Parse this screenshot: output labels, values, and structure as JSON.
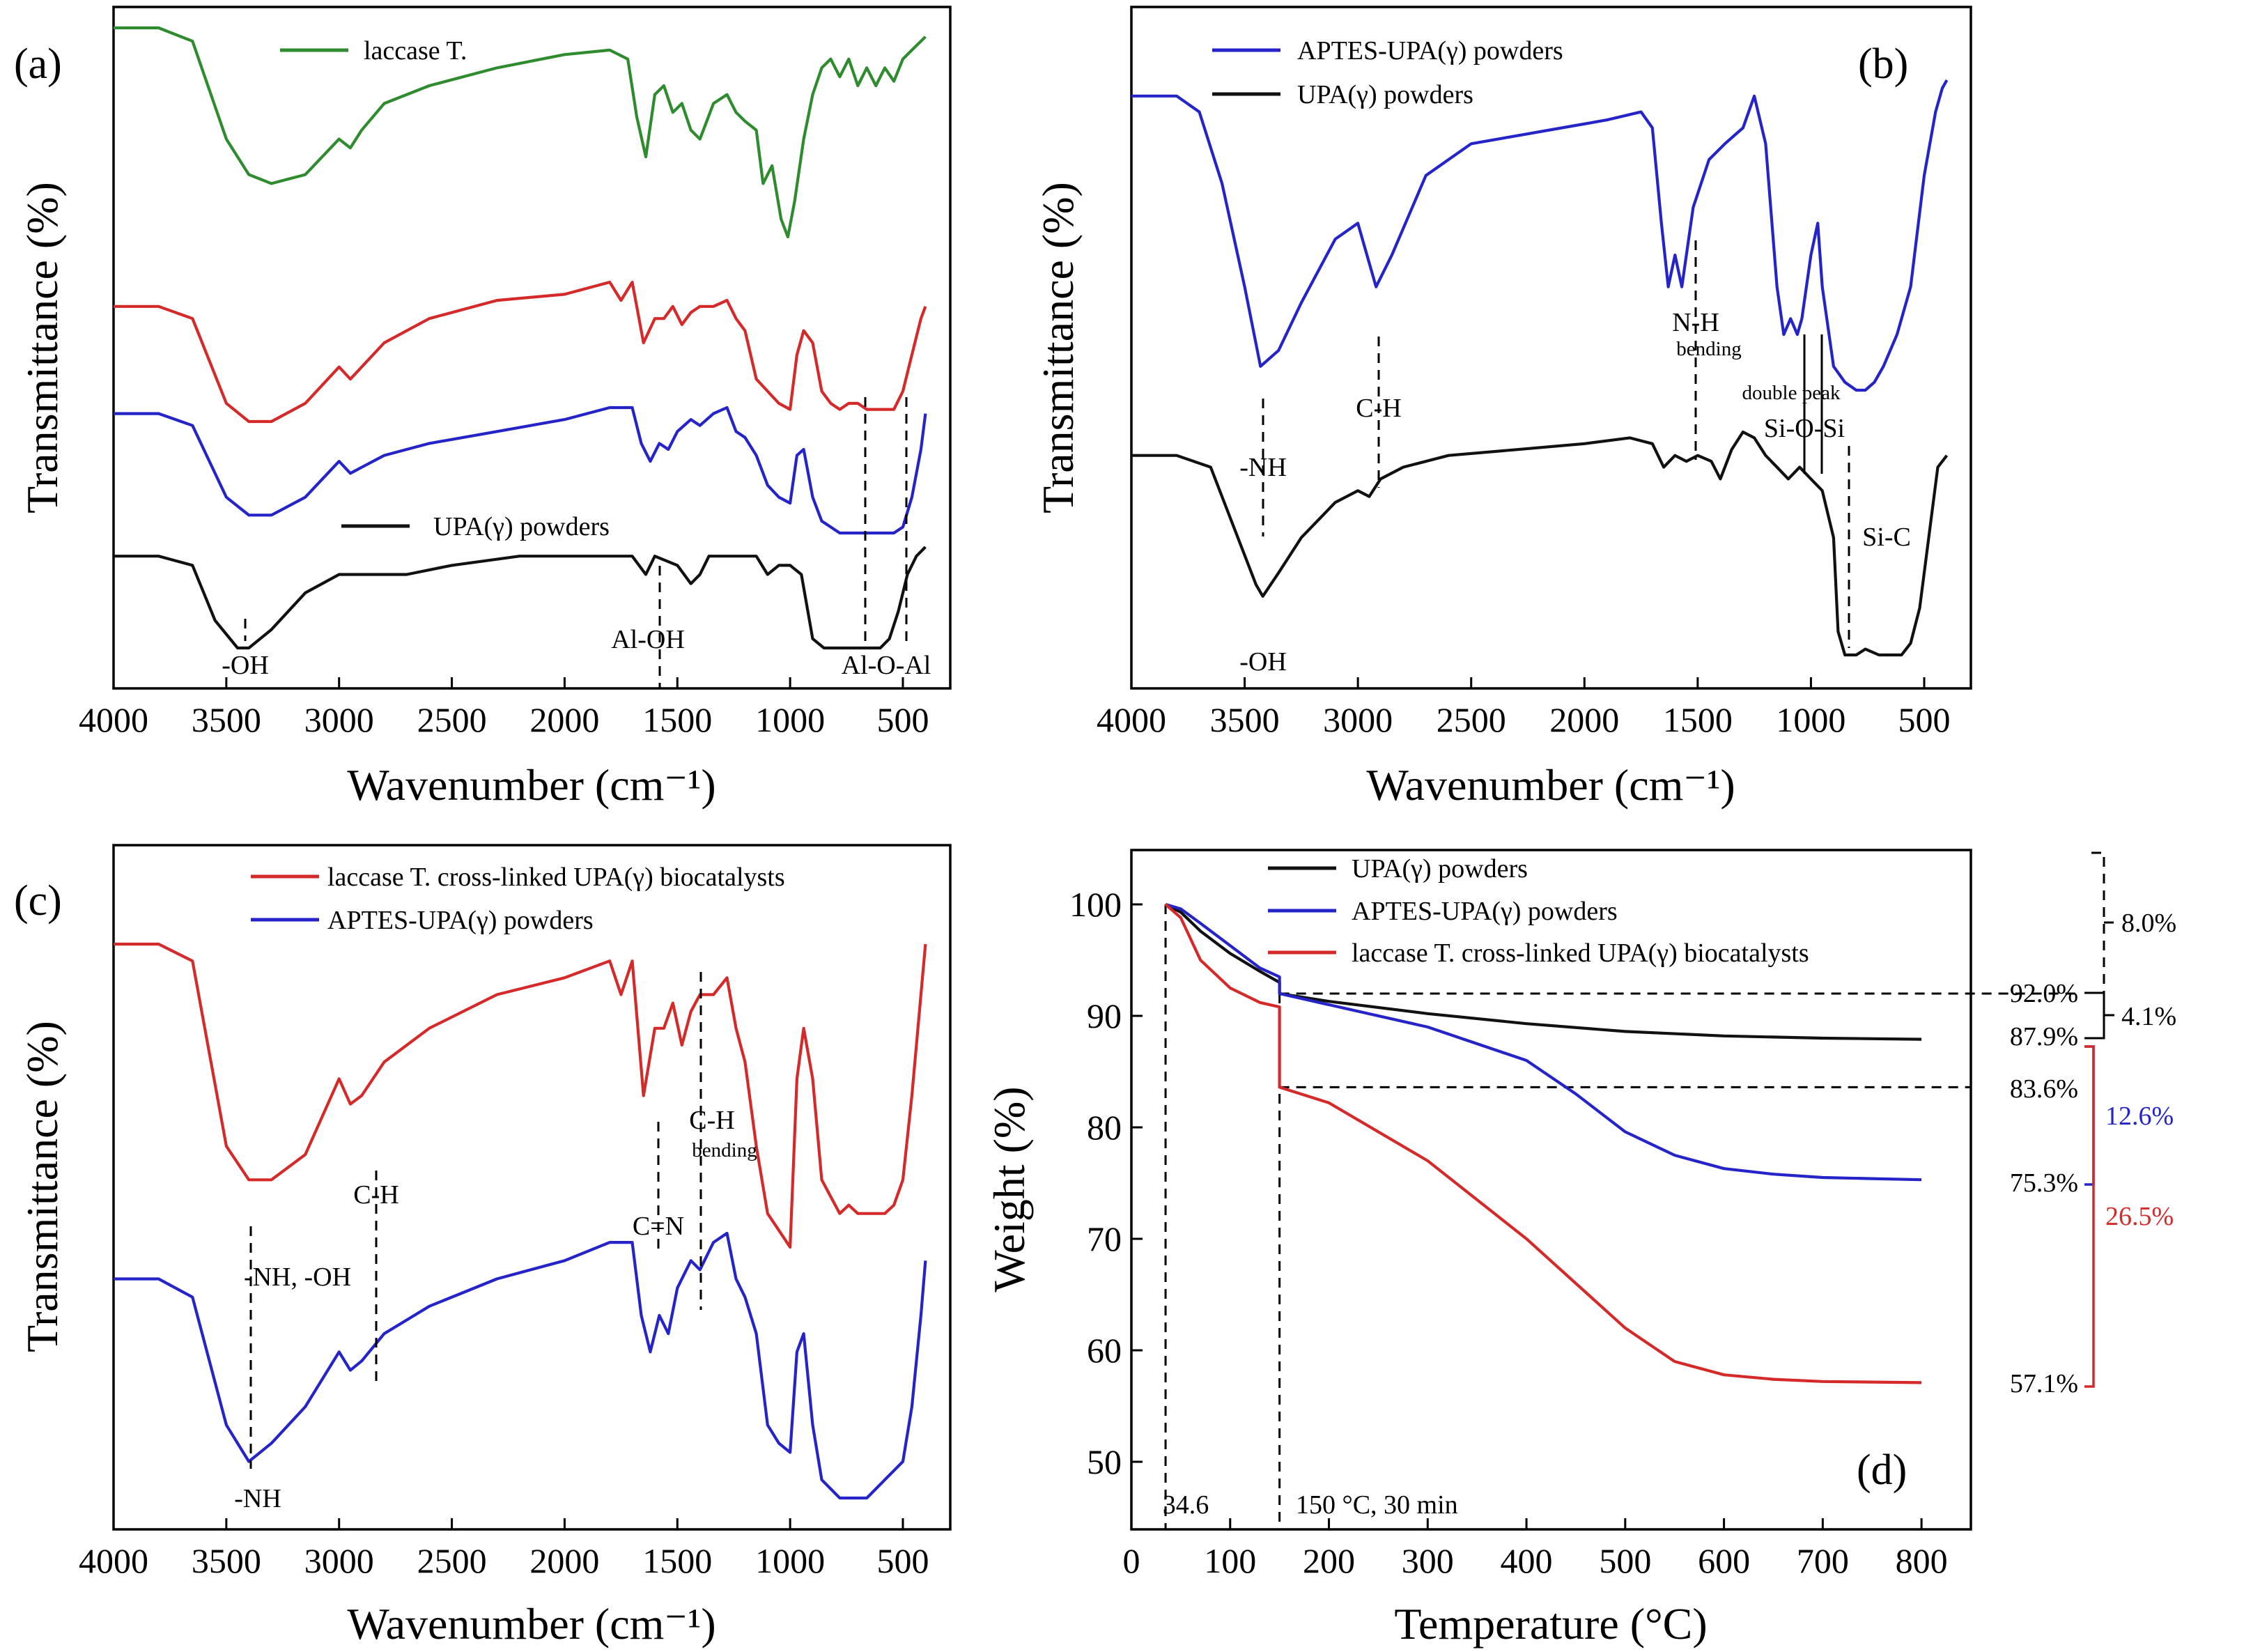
{
  "colors": {
    "green": "#2e8b2e",
    "red": "#d42a2a",
    "blue": "#2424c8",
    "black": "#111111"
  },
  "panels": [
    {
      "id": "a",
      "letter": "(a)",
      "xlabel": "Wavenumber (cm⁻¹)",
      "ylabel": "Transmittance (%)",
      "xticks": [
        "4000",
        "3500",
        "3000",
        "2500",
        "2000",
        "1500",
        "1000",
        "500"
      ],
      "legend": [
        {
          "text": "laccase T.",
          "color": "green"
        },
        {
          "text": "UPA(γ) powders",
          "color": "black"
        }
      ],
      "annotations": [
        "-OH",
        "Al-OH",
        "Al-O-Al"
      ]
    },
    {
      "id": "b",
      "letter": "(b)",
      "xlabel": "Wavenumber (cm⁻¹)",
      "ylabel": "Transmittance (%)",
      "xticks": [
        "4000",
        "3500",
        "3000",
        "2500",
        "2000",
        "1500",
        "1000",
        "500"
      ],
      "legend": [
        {
          "text": "APTES-UPA(γ) powders",
          "color": "blue"
        },
        {
          "text": "UPA(γ) powders",
          "color": "black"
        }
      ],
      "annotations": [
        "-NH",
        "C-H",
        "N-H",
        "bending",
        "double peak",
        "Si-O-Si",
        "Si-C",
        "-OH"
      ]
    },
    {
      "id": "c",
      "letter": "(c)",
      "xlabel": "Wavenumber (cm⁻¹)",
      "ylabel": "Transmittance (%)",
      "xticks": [
        "4000",
        "3500",
        "3000",
        "2500",
        "2000",
        "1500",
        "1000",
        "500"
      ],
      "legend": [
        {
          "text": "laccase T. cross-linked UPA(γ) biocatalysts",
          "color": "red"
        },
        {
          "text": "APTES-UPA(γ) powders",
          "color": "blue"
        }
      ],
      "annotations": [
        "-NH, -OH",
        "C-H",
        "C=N",
        "C-H",
        "bending",
        "-NH"
      ]
    },
    {
      "id": "d",
      "letter": "(d)",
      "xlabel": "Temperature (°C)",
      "ylabel": "Weight (%)",
      "xticks": [
        "0",
        "100",
        "200",
        "300",
        "400",
        "500",
        "600",
        "700",
        "800"
      ],
      "yticks": [
        "50",
        "60",
        "70",
        "80",
        "90",
        "100"
      ],
      "legend": [
        {
          "text": "UPA(γ) powders",
          "color": "black"
        },
        {
          "text": "APTES-UPA(γ) powders",
          "color": "blue"
        },
        {
          "text": "laccase T. cross-linked UPA(γ) biocatalysts",
          "color": "red"
        }
      ],
      "annotations": [
        "34.6",
        "150 °C, 30 min"
      ],
      "right_labels": [
        "92.0%",
        "87.9%",
        "83.6%",
        "75.3%",
        "57.1%"
      ],
      "brackets": [
        "8.0%",
        "4.1%",
        "12.6%",
        "26.5%"
      ]
    }
  ],
  "chart_data": [
    {
      "type": "line",
      "panel": "a",
      "xlabel": "Wavenumber (cm⁻¹)",
      "ylabel": "Transmittance (%)",
      "xlim": [
        4000,
        400
      ],
      "x_reversed": true,
      "y_ticks": false,
      "series": [
        {
          "name": "laccase T.",
          "color": "green",
          "x": [
            4000,
            3800,
            3650,
            3500,
            3400,
            3300,
            3150,
            3000,
            2950,
            2900,
            2800,
            2600,
            2300,
            2000,
            1800,
            1720,
            1680,
            1640,
            1600,
            1560,
            1520,
            1480,
            1440,
            1400,
            1340,
            1280,
            1240,
            1200,
            1150,
            1120,
            1080,
            1040,
            1010,
            980,
            940,
            900,
            860,
            820,
            780,
            740,
            700,
            660,
            620,
            580,
            540,
            500,
            460,
            420,
            400
          ],
          "y": [
            95,
            95,
            92,
            70,
            62,
            60,
            62,
            70,
            68,
            72,
            78,
            82,
            86,
            89,
            90,
            88,
            75,
            66,
            80,
            82,
            76,
            78,
            72,
            70,
            78,
            80,
            76,
            74,
            72,
            60,
            64,
            52,
            48,
            56,
            70,
            80,
            86,
            88,
            84,
            88,
            82,
            86,
            82,
            86,
            83,
            88,
            90,
            92,
            93
          ]
        },
        {
          "name": "",
          "color": "red",
          "x": [
            4000,
            3800,
            3650,
            3500,
            3400,
            3300,
            3150,
            3000,
            2950,
            2900,
            2800,
            2600,
            2300,
            2000,
            1800,
            1750,
            1700,
            1650,
            1600,
            1560,
            1520,
            1480,
            1440,
            1400,
            1340,
            1280,
            1240,
            1200,
            1150,
            1100,
            1050,
            1000,
            970,
            940,
            900,
            860,
            820,
            780,
            740,
            700,
            660,
            620,
            580,
            540,
            500,
            460,
            420,
            400
          ],
          "y": [
            62,
            62,
            60,
            46,
            43,
            43,
            46,
            52,
            50,
            52,
            56,
            60,
            63,
            64,
            66,
            63,
            66,
            56,
            60,
            60,
            62,
            59,
            61,
            62,
            62,
            63,
            60,
            58,
            50,
            48,
            46,
            45,
            54,
            58,
            56,
            48,
            46,
            45,
            46,
            46,
            45,
            45,
            45,
            45,
            48,
            54,
            60,
            62
          ]
        },
        {
          "name": "",
          "color": "blue",
          "x": [
            4000,
            3800,
            3650,
            3500,
            3400,
            3300,
            3150,
            3000,
            2950,
            2900,
            2800,
            2600,
            2300,
            2000,
            1800,
            1700,
            1660,
            1620,
            1580,
            1540,
            1500,
            1440,
            1400,
            1340,
            1280,
            1240,
            1200,
            1150,
            1100,
            1050,
            1000,
            970,
            940,
            900,
            860,
            820,
            780,
            740,
            700,
            660,
            620,
            580,
            540,
            500,
            460,
            420,
            400
          ],
          "y": [
            44,
            44,
            42,
            30,
            27,
            27,
            30,
            36,
            34,
            35,
            37,
            39,
            41,
            43,
            45,
            45,
            39,
            36,
            39,
            38,
            41,
            43,
            42,
            44,
            45,
            41,
            40,
            37,
            32,
            30,
            29,
            37,
            38,
            30,
            26,
            25,
            24,
            24,
            24,
            24,
            24,
            24,
            24,
            25,
            30,
            38,
            44
          ]
        },
        {
          "name": "UPA(γ) powders",
          "color": "black",
          "x": [
            4000,
            3800,
            3650,
            3550,
            3450,
            3400,
            3300,
            3150,
            3000,
            2900,
            2700,
            2500,
            2200,
            1900,
            1700,
            1640,
            1600,
            1500,
            1440,
            1400,
            1360,
            1300,
            1200,
            1150,
            1100,
            1050,
            1000,
            950,
            900,
            850,
            800,
            750,
            700,
            650,
            600,
            560,
            520,
            480,
            440,
            400
          ],
          "y": [
            20,
            20,
            19,
            13,
            10,
            10,
            12,
            16,
            18,
            18,
            18,
            19,
            20,
            20,
            20,
            18,
            20,
            19,
            17,
            18,
            20,
            20,
            20,
            20,
            18,
            19,
            19,
            18,
            11,
            10,
            10,
            10,
            10,
            10,
            10,
            11,
            14,
            18,
            20,
            21
          ]
        }
      ]
    },
    {
      "type": "line",
      "panel": "b",
      "xlabel": "Wavenumber (cm⁻¹)",
      "ylabel": "Transmittance (%)",
      "xlim": [
        4000,
        400
      ],
      "x_reversed": true,
      "y_ticks": false,
      "series": [
        {
          "name": "APTES-UPA(γ) powders",
          "color": "blue",
          "x": [
            4000,
            3800,
            3700,
            3600,
            3500,
            3430,
            3350,
            3250,
            3100,
            3000,
            2960,
            2920,
            2850,
            2700,
            2500,
            2300,
            2100,
            1900,
            1750,
            1700,
            1660,
            1630,
            1600,
            1570,
            1520,
            1450,
            1380,
            1300,
            1250,
            1200,
            1150,
            1120,
            1090,
            1060,
            1040,
            1000,
            970,
            950,
            900,
            850,
            800,
            760,
            720,
            680,
            620,
            560,
            500,
            450,
            420,
            400
          ],
          "y": [
            94,
            94,
            92,
            83,
            70,
            60,
            62,
            68,
            76,
            78,
            74,
            70,
            74,
            84,
            88,
            89,
            90,
            91,
            92,
            90,
            78,
            70,
            74,
            70,
            80,
            86,
            88,
            90,
            94,
            88,
            70,
            64,
            66,
            64,
            66,
            74,
            78,
            70,
            60,
            58,
            57,
            57,
            58,
            60,
            64,
            70,
            84,
            92,
            95,
            96
          ]
        },
        {
          "name": "UPA(γ) powders",
          "color": "black",
          "x": [
            4000,
            3800,
            3650,
            3550,
            3450,
            3420,
            3350,
            3250,
            3100,
            3000,
            2950,
            2900,
            2800,
            2600,
            2300,
            2000,
            1800,
            1700,
            1650,
            1600,
            1550,
            1500,
            1440,
            1400,
            1350,
            1300,
            1250,
            1200,
            1150,
            1100,
            1050,
            1000,
            950,
            900,
            880,
            850,
            800,
            760,
            700,
            650,
            600,
            560,
            520,
            480,
            440,
            400
          ],
          "y": [
            44,
            44,
            42,
            32,
            22,
            20,
            24,
            30,
            36,
            38,
            37,
            40,
            42,
            44,
            45,
            46,
            47,
            46,
            42,
            44,
            43,
            44,
            43,
            40,
            45,
            48,
            47,
            44,
            42,
            40,
            42,
            40,
            38,
            30,
            14,
            10,
            10,
            11,
            10,
            10,
            10,
            12,
            18,
            30,
            42,
            44
          ]
        }
      ]
    },
    {
      "type": "line",
      "panel": "c",
      "xlabel": "Wavenumber (cm⁻¹)",
      "ylabel": "Transmittance (%)",
      "xlim": [
        4000,
        400
      ],
      "x_reversed": true,
      "y_ticks": false,
      "series": [
        {
          "name": "laccase T. cross-linked UPA(γ) biocatalysts",
          "color": "red",
          "x": [
            4000,
            3800,
            3650,
            3500,
            3400,
            3300,
            3150,
            3000,
            2950,
            2900,
            2800,
            2600,
            2300,
            2000,
            1800,
            1750,
            1700,
            1650,
            1600,
            1560,
            1520,
            1480,
            1440,
            1400,
            1340,
            1280,
            1240,
            1200,
            1150,
            1100,
            1050,
            1000,
            970,
            940,
            900,
            860,
            820,
            780,
            740,
            700,
            660,
            620,
            580,
            540,
            500,
            460,
            420,
            400
          ],
          "y": [
            92,
            92,
            90,
            68,
            64,
            64,
            67,
            76,
            73,
            74,
            78,
            82,
            86,
            88,
            90,
            86,
            90,
            74,
            82,
            82,
            85,
            80,
            84,
            86,
            86,
            88,
            82,
            78,
            68,
            60,
            58,
            56,
            76,
            82,
            76,
            64,
            62,
            60,
            61,
            60,
            60,
            60,
            60,
            61,
            64,
            74,
            86,
            92
          ]
        },
        {
          "name": "APTES-UPA(γ) powders",
          "color": "blue",
          "x": [
            4000,
            3800,
            3650,
            3500,
            3400,
            3300,
            3150,
            3000,
            2950,
            2900,
            2800,
            2600,
            2300,
            2000,
            1800,
            1700,
            1660,
            1620,
            1580,
            1540,
            1500,
            1440,
            1400,
            1340,
            1280,
            1240,
            1200,
            1150,
            1100,
            1050,
            1000,
            970,
            940,
            900,
            860,
            820,
            780,
            740,
            700,
            660,
            620,
            580,
            540,
            500,
            460,
            420,
            400
          ],
          "y": [
            52,
            52,
            50,
            36,
            32,
            34,
            38,
            44,
            42,
            43,
            46,
            49,
            52,
            54,
            56,
            56,
            48,
            44,
            48,
            46,
            51,
            54,
            53,
            56,
            57,
            52,
            50,
            46,
            36,
            34,
            33,
            44,
            46,
            36,
            30,
            29,
            28,
            28,
            28,
            28,
            29,
            30,
            31,
            32,
            38,
            48,
            54
          ]
        }
      ]
    },
    {
      "type": "line",
      "panel": "d",
      "xlabel": "Temperature (°C)",
      "ylabel": "Weight (%)",
      "xlim": [
        0,
        850
      ],
      "ylim": [
        47,
        104
      ],
      "series": [
        {
          "name": "UPA(γ) powders",
          "color": "black",
          "x": [
            34.6,
            50,
            70,
            100,
            130,
            150,
            150,
            200,
            300,
            400,
            500,
            600,
            700,
            800
          ],
          "y": [
            100,
            99.3,
            97.6,
            95.6,
            94.0,
            93.0,
            92.0,
            91.3,
            90.2,
            89.3,
            88.6,
            88.2,
            88.0,
            87.9
          ]
        },
        {
          "name": "APTES-UPA(γ) powders",
          "color": "blue",
          "x": [
            34.6,
            50,
            70,
            100,
            130,
            150,
            150,
            200,
            300,
            400,
            450,
            500,
            550,
            600,
            650,
            700,
            750,
            800
          ],
          "y": [
            100,
            99.6,
            98.3,
            96.3,
            94.3,
            93.5,
            92.0,
            91.0,
            89.0,
            86.0,
            83.0,
            79.6,
            77.5,
            76.3,
            75.8,
            75.5,
            75.4,
            75.3
          ]
        },
        {
          "name": "laccase T. cross-linked UPA(γ) biocatalysts",
          "color": "red",
          "x": [
            34.6,
            50,
            70,
            100,
            130,
            150,
            150,
            200,
            300,
            400,
            500,
            550,
            600,
            650,
            700,
            800
          ],
          "y": [
            100,
            98.8,
            95.0,
            92.5,
            91.2,
            90.8,
            83.6,
            82.2,
            77.0,
            70.0,
            62.0,
            59.0,
            57.8,
            57.4,
            57.2,
            57.1
          ]
        }
      ]
    }
  ]
}
